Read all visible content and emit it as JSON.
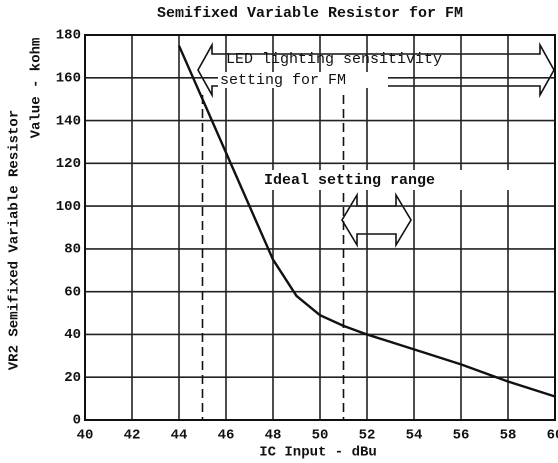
{
  "chart_data": {
    "type": "line",
    "title": "Semifixed Variable Resistor for FM",
    "x_label": "IC Input - dBu",
    "y_label": [
      "VR2 Semifixed Variable Resistor",
      "Value - kohm"
    ],
    "annotations": [
      "LED lighting sensitivity",
      "setting for FM",
      "Ideal setting range"
    ],
    "x": [
      44,
      45,
      46,
      47,
      48,
      49,
      50,
      51,
      52,
      54,
      56,
      58,
      60
    ],
    "series": [
      {
        "name": "VR2",
        "color": "#111111",
        "values": [
          175,
          150,
          125,
          100,
          75,
          58,
          49,
          44,
          40,
          33,
          26,
          18,
          11
        ]
      }
    ],
    "vlines": [
      45,
      51
    ],
    "xlim": [
      40,
      60
    ],
    "xticks": [
      40,
      42,
      44,
      46,
      48,
      50,
      52,
      54,
      56,
      58,
      60
    ],
    "ylim": [
      0,
      180
    ],
    "yticks": [
      0,
      20,
      40,
      60,
      80,
      100,
      120,
      140,
      160,
      180
    ],
    "grid": true
  }
}
